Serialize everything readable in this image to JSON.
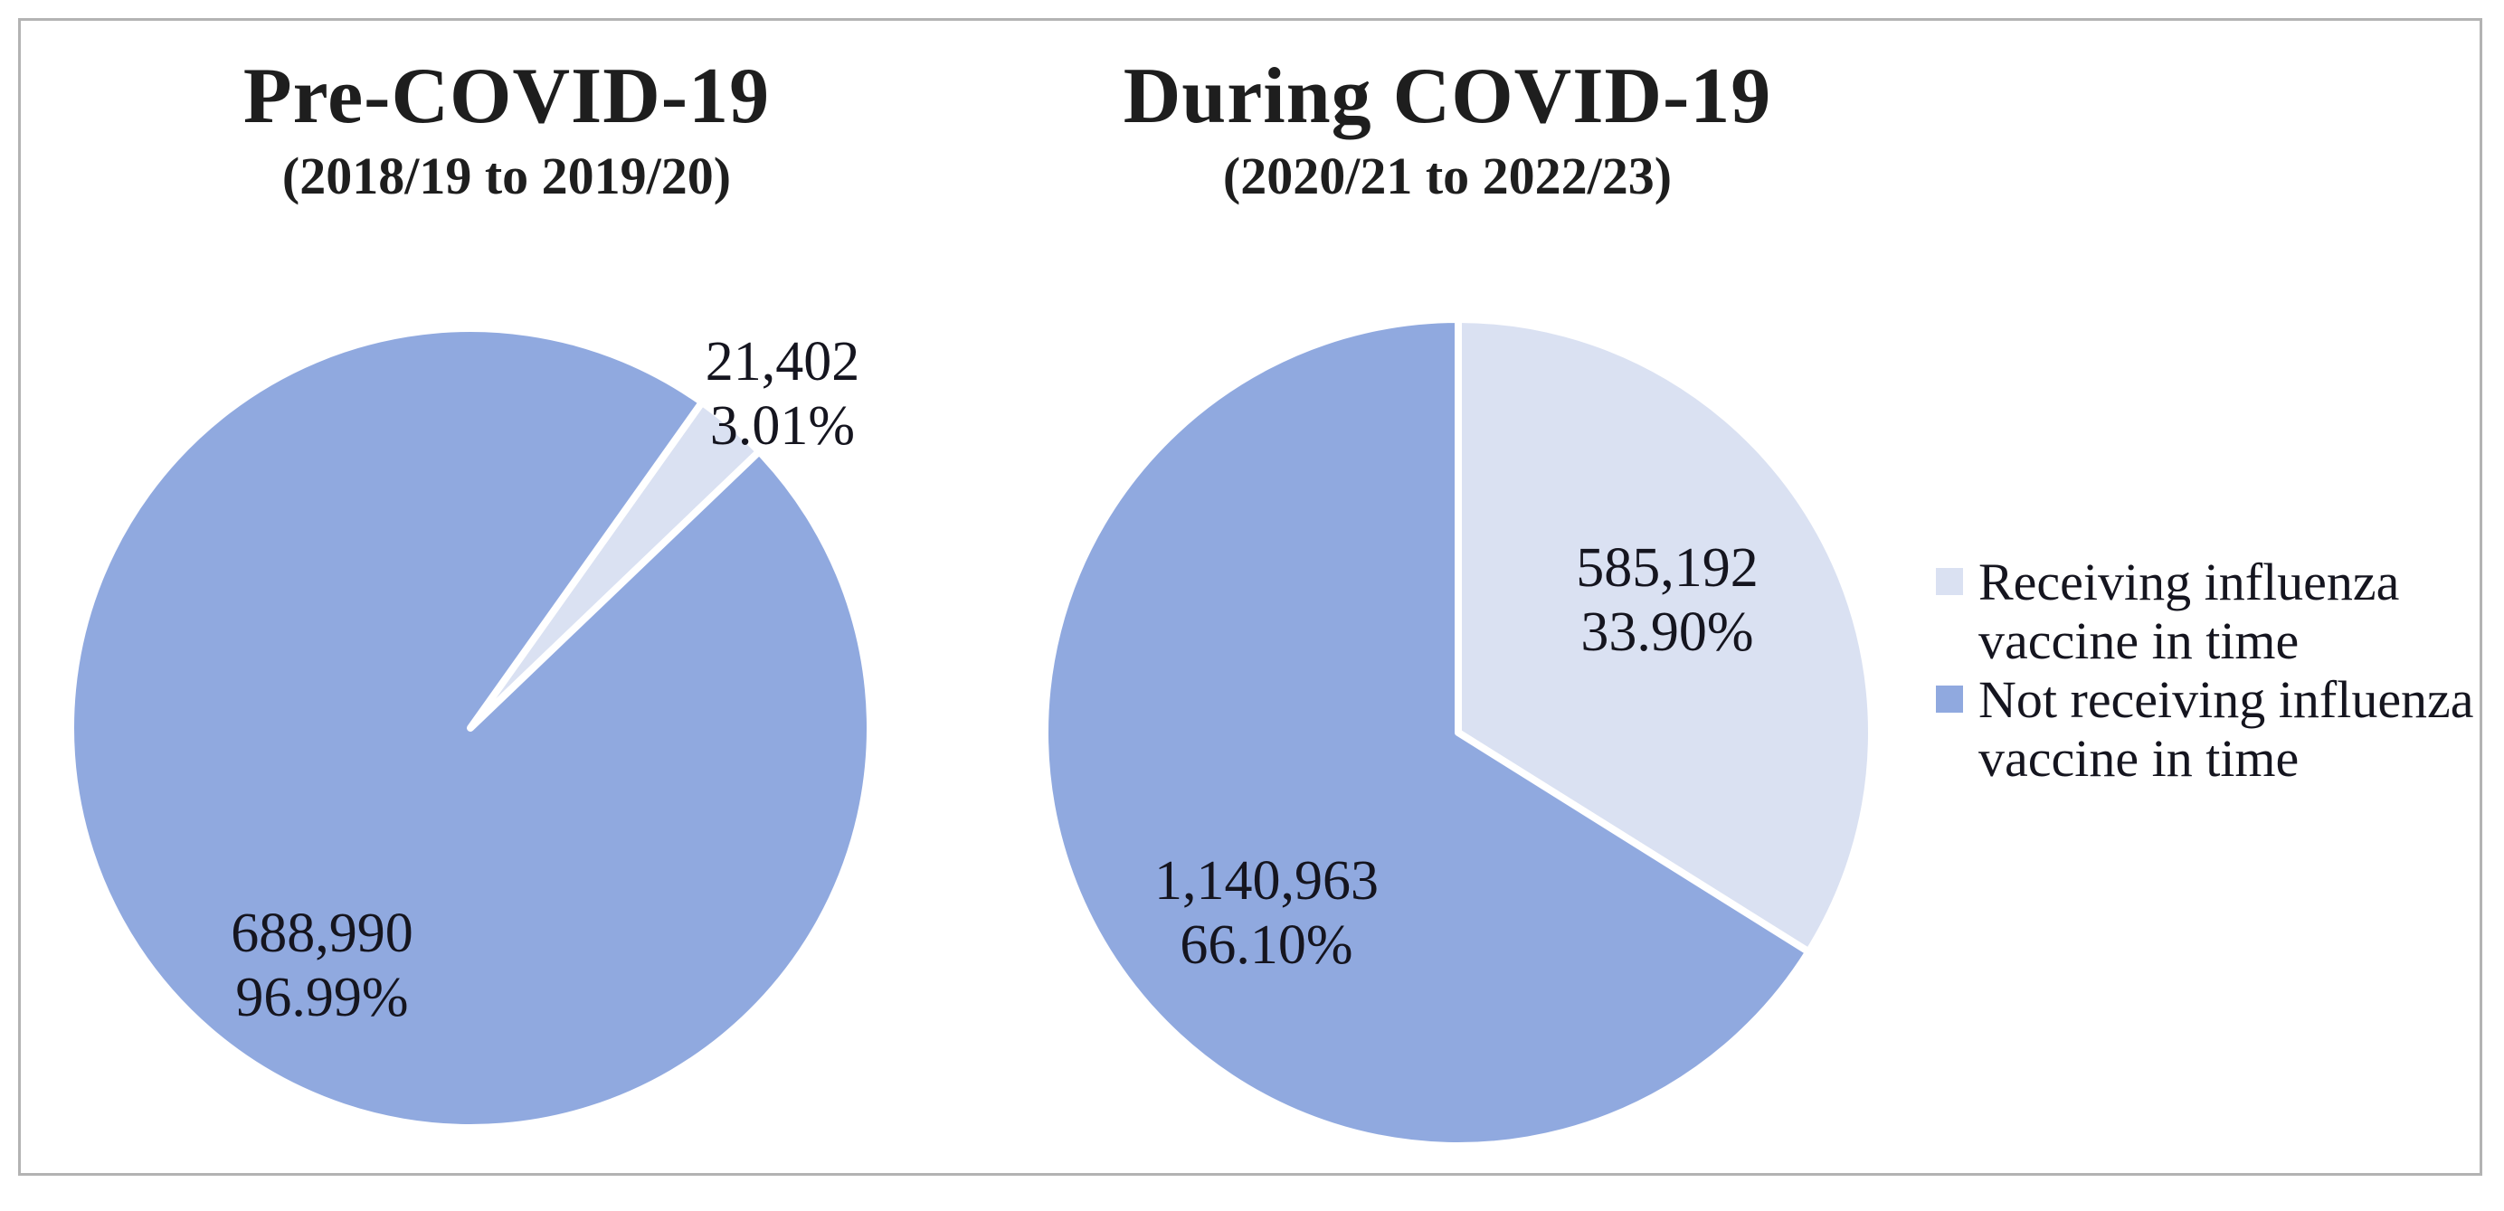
{
  "figure": {
    "background": "#ffffff",
    "border_color": "#b3b3b3"
  },
  "colors": {
    "slice_light_blue": "#dae1f2",
    "slice_medium_blue": "#90a9df",
    "label_text": "#15151f",
    "title_text": "#1e1e1e"
  },
  "legend": {
    "position": "right",
    "items": [
      {
        "label": "Receiving influenza vaccine in time",
        "color": "#dae1f2"
      },
      {
        "label": "Not receiving influenza vaccine in time",
        "color": "#90a9df"
      }
    ]
  },
  "chart_data": [
    {
      "type": "pie",
      "title": "Pre-COVID-19",
      "subtitle": "(2018/19 to 2019/20)",
      "categories": [
        "Receiving influenza vaccine in time",
        "Not receiving influenza vaccine in time"
      ],
      "values": [
        21402,
        688990
      ],
      "value_labels": [
        "21,402",
        "688,990"
      ],
      "pct": [
        3.01,
        96.99
      ],
      "pct_labels": [
        "3.01%",
        "96.99%"
      ],
      "colors": [
        "#dae1f2",
        "#90a9df"
      ],
      "start_angle_deg": 35.4,
      "slice_border_color": "#ffffff"
    },
    {
      "type": "pie",
      "title": "During COVID-19",
      "subtitle": "(2020/21 to 2022/23)",
      "categories": [
        "Receiving influenza vaccine in time",
        "Not receiving influenza vaccine in time"
      ],
      "values": [
        585192,
        1140963
      ],
      "value_labels": [
        "585,192",
        "1,140,963"
      ],
      "pct": [
        33.9,
        66.1
      ],
      "pct_labels": [
        "33.90%",
        "66.10%"
      ],
      "colors": [
        "#dae1f2",
        "#90a9df"
      ],
      "start_angle_deg": 0,
      "slice_border_color": "#ffffff"
    }
  ]
}
